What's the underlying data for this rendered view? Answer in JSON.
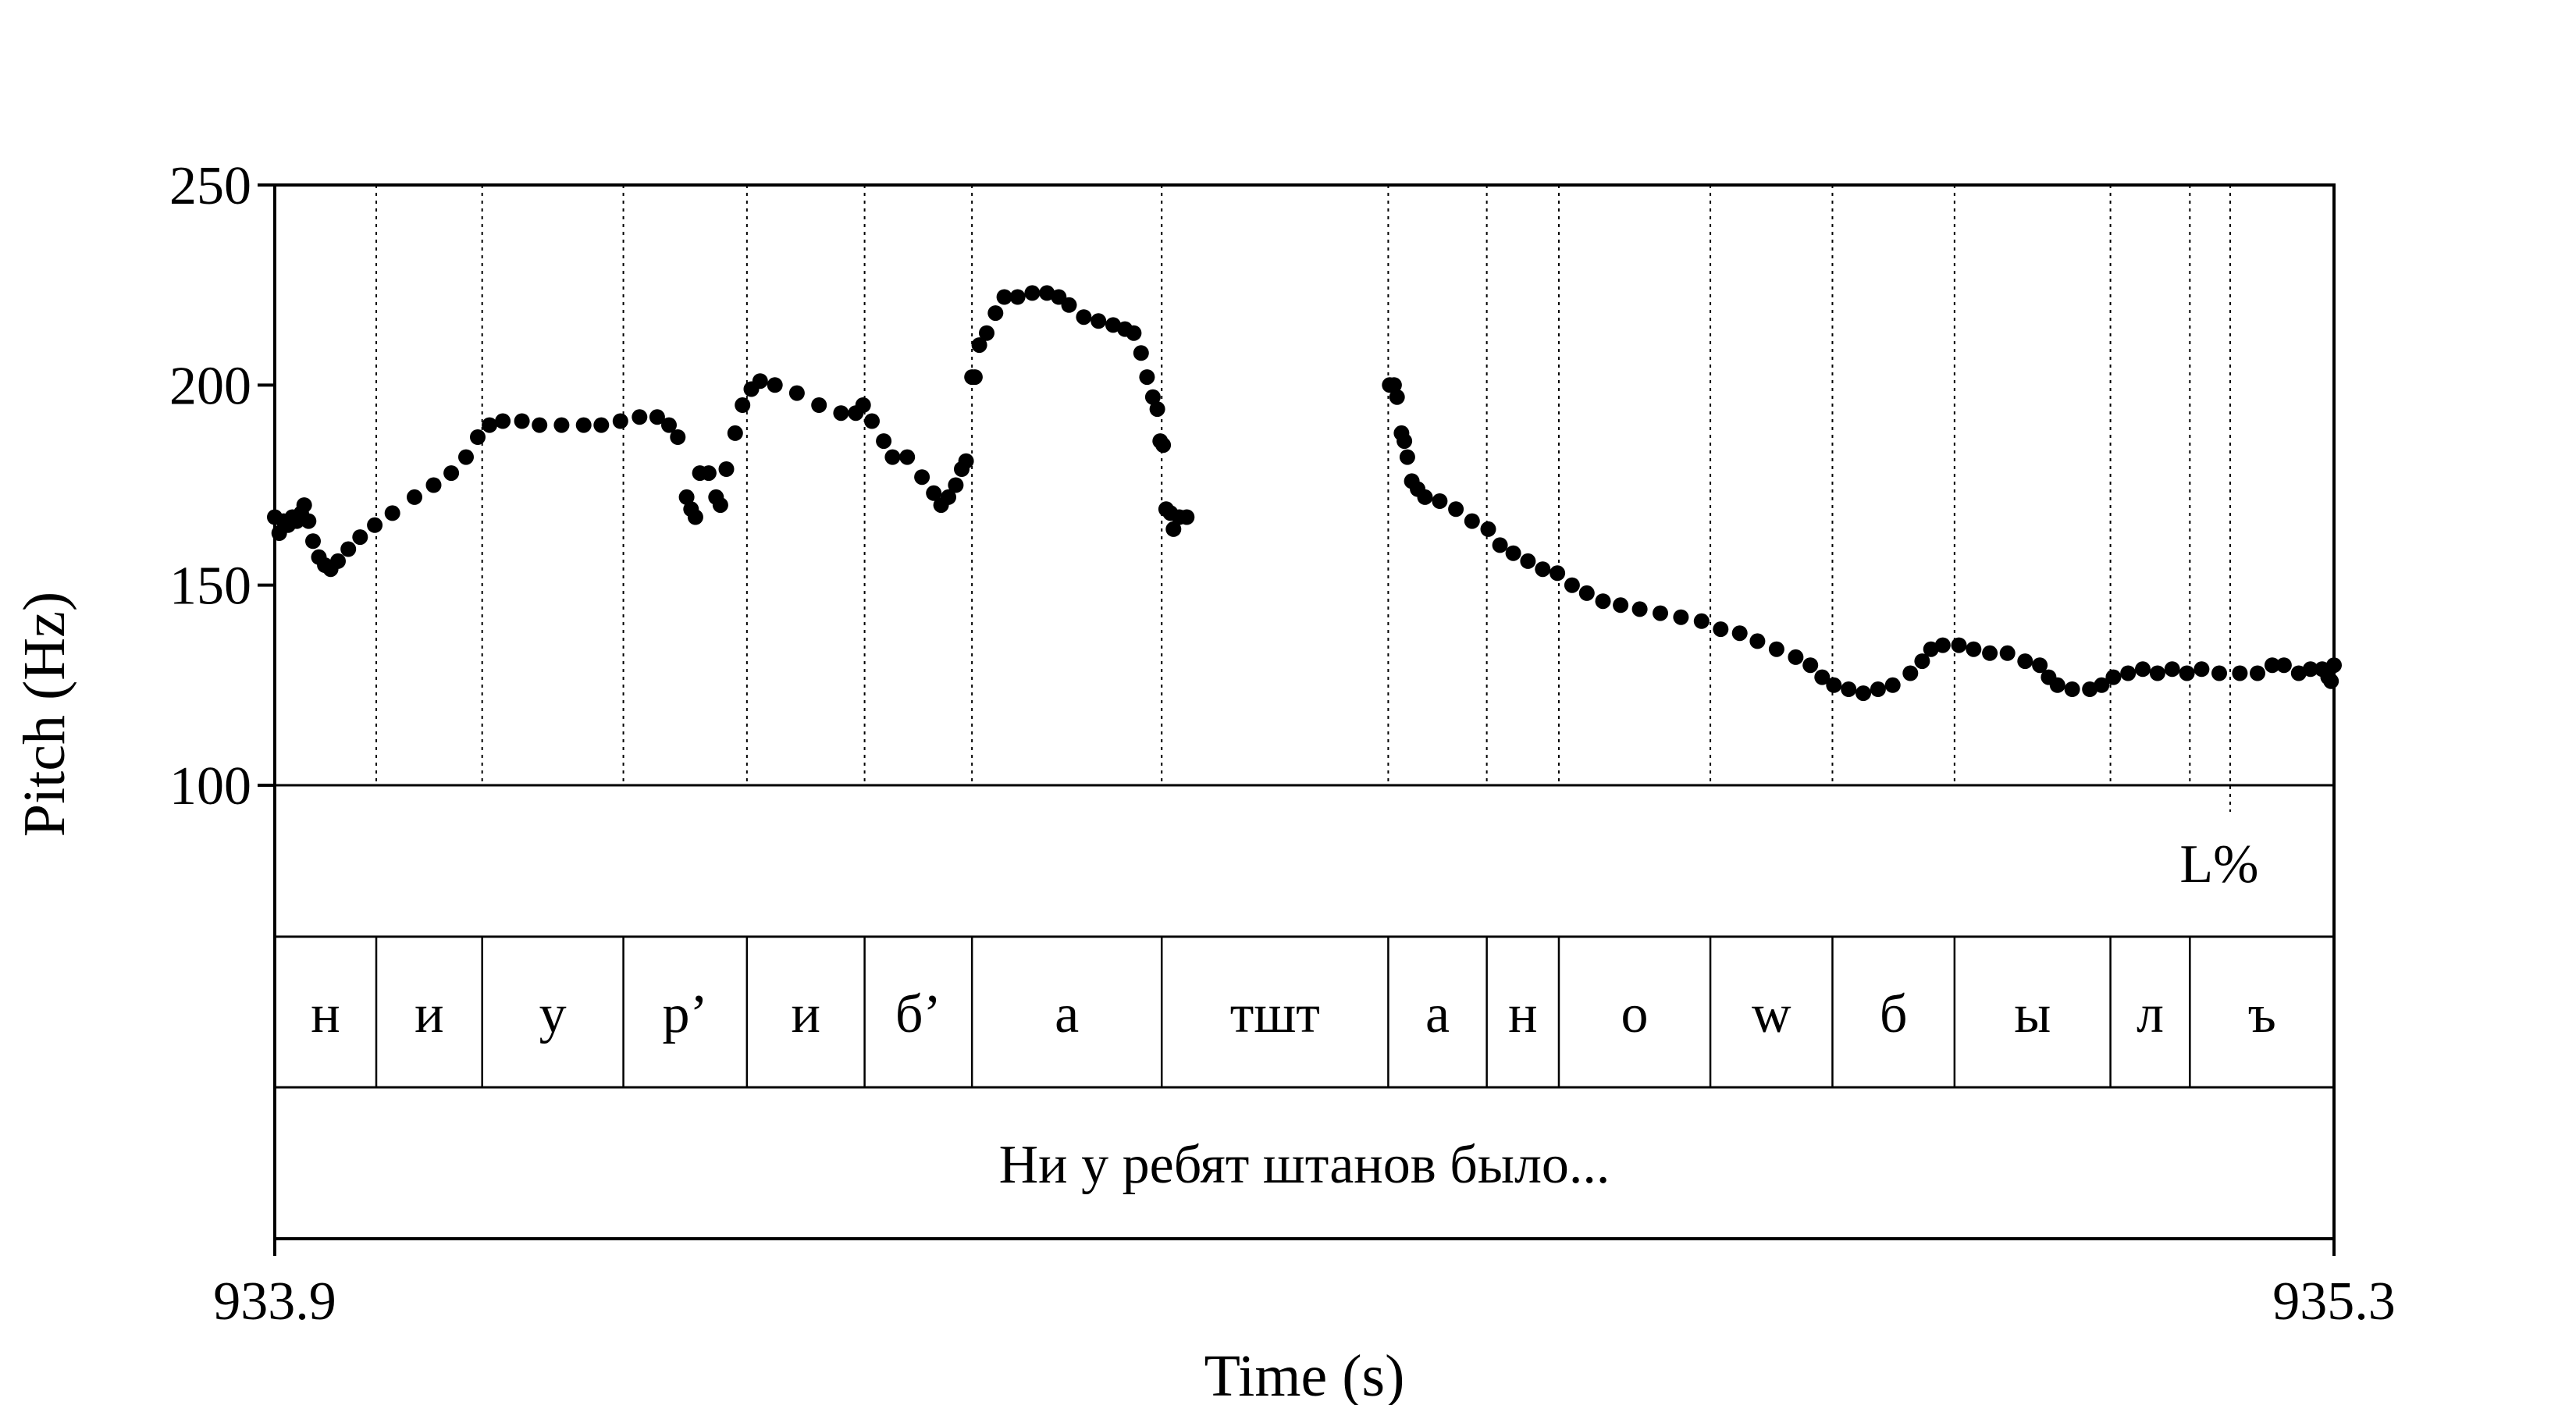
{
  "chart_data": {
    "type": "scatter",
    "ylabel": "Pitch (Hz)",
    "xlabel": "Time (s)",
    "ylim": [
      100,
      250
    ],
    "yticks": [
      100,
      150,
      200,
      250
    ],
    "xlim": [
      933.9,
      935.3
    ],
    "xtick_labels": [
      "933.9",
      "935.3"
    ],
    "grid": "dotted vertical lines at segment boundaries",
    "point_color": "#000000",
    "tiers": {
      "tone": [
        {
          "label": "L%",
          "t": 935.2294
        }
      ],
      "segments": [
        {
          "label": "н",
          "start": 933.9,
          "end": 933.969
        },
        {
          "label": "и",
          "start": 933.969,
          "end": 934.041
        },
        {
          "label": "у",
          "start": 934.041,
          "end": 934.137
        },
        {
          "label": "р’",
          "start": 934.137,
          "end": 934.221
        },
        {
          "label": "и",
          "start": 934.221,
          "end": 934.301
        },
        {
          "label": "б’",
          "start": 934.301,
          "end": 934.374
        },
        {
          "label": "а",
          "start": 934.374,
          "end": 934.503
        },
        {
          "label": "тшт",
          "start": 934.503,
          "end": 934.657
        },
        {
          "label": "а",
          "start": 934.657,
          "end": 934.724
        },
        {
          "label": "н",
          "start": 934.724,
          "end": 934.773
        },
        {
          "label": "о",
          "start": 934.773,
          "end": 934.876
        },
        {
          "label": "w",
          "start": 934.876,
          "end": 934.959
        },
        {
          "label": "б",
          "start": 934.959,
          "end": 935.042
        },
        {
          "label": "ы",
          "start": 935.042,
          "end": 935.148
        },
        {
          "label": "л",
          "start": 935.148,
          "end": 935.202
        },
        {
          "label": "ъ",
          "start": 935.202,
          "end": 935.3
        }
      ],
      "sentence": "Ни у ребят штанов было..."
    },
    "series": [
      {
        "points": [
          [
            933.9,
            167
          ],
          [
            933.903,
            163
          ],
          [
            933.906,
            166
          ],
          [
            933.909,
            165
          ],
          [
            933.912,
            167
          ],
          [
            933.915,
            166
          ],
          [
            933.918,
            168
          ],
          [
            933.92,
            170
          ],
          [
            933.923,
            166
          ],
          [
            933.926,
            161
          ],
          [
            933.93,
            157
          ],
          [
            933.934,
            155
          ],
          [
            933.938,
            154
          ],
          [
            933.943,
            156
          ],
          [
            933.95,
            159
          ],
          [
            933.958,
            162
          ],
          [
            933.968,
            165
          ],
          [
            933.98,
            168
          ],
          [
            933.995,
            172
          ],
          [
            934.008,
            175
          ],
          [
            934.02,
            178
          ],
          [
            934.03,
            182
          ],
          [
            934.038,
            187
          ],
          [
            934.046,
            190
          ],
          [
            934.055,
            191
          ],
          [
            934.068,
            191
          ],
          [
            934.08,
            190
          ],
          [
            934.095,
            190
          ],
          [
            934.11,
            190
          ],
          [
            934.122,
            190
          ],
          [
            934.135,
            191
          ],
          [
            934.148,
            192
          ],
          [
            934.16,
            192
          ],
          [
            934.168,
            190
          ],
          [
            934.174,
            187
          ],
          [
            934.18,
            172
          ],
          [
            934.183,
            169
          ],
          [
            934.186,
            167
          ],
          [
            934.189,
            178
          ],
          [
            934.195,
            178
          ],
          [
            934.2,
            172
          ],
          [
            934.203,
            170
          ],
          [
            934.207,
            179
          ],
          [
            934.213,
            188
          ],
          [
            934.218,
            195
          ],
          [
            934.224,
            199
          ],
          [
            934.23,
            201
          ],
          [
            934.24,
            200
          ],
          [
            934.255,
            198
          ],
          [
            934.27,
            195
          ],
          [
            934.285,
            193
          ],
          [
            934.295,
            193
          ],
          [
            934.3,
            195
          ],
          [
            934.306,
            191
          ],
          [
            934.314,
            186
          ],
          [
            934.32,
            182
          ],
          [
            934.33,
            182
          ],
          [
            934.34,
            177
          ],
          [
            934.348,
            173
          ],
          [
            934.353,
            170
          ],
          [
            934.358,
            172
          ],
          [
            934.363,
            175
          ],
          [
            934.367,
            179
          ],
          [
            934.37,
            181
          ],
          [
            934.374,
            202
          ],
          [
            934.376,
            202
          ],
          [
            934.379,
            210
          ],
          [
            934.384,
            213
          ],
          [
            934.39,
            218
          ],
          [
            934.396,
            222
          ],
          [
            934.405,
            222
          ],
          [
            934.415,
            223
          ],
          [
            934.425,
            223
          ],
          [
            934.433,
            222
          ],
          [
            934.44,
            220
          ],
          [
            934.45,
            217
          ],
          [
            934.46,
            216
          ],
          [
            934.47,
            215
          ],
          [
            934.478,
            214
          ],
          [
            934.484,
            213
          ],
          [
            934.489,
            208
          ],
          [
            934.493,
            202
          ],
          [
            934.497,
            197
          ],
          [
            934.5,
            194
          ],
          [
            934.502,
            186
          ],
          [
            934.504,
            185
          ],
          [
            934.506,
            169
          ],
          [
            934.509,
            168
          ],
          [
            934.511,
            164
          ],
          [
            934.515,
            167
          ],
          [
            934.52,
            167
          ],
          [
            934.658,
            200
          ],
          [
            934.661,
            200
          ],
          [
            934.663,
            197
          ],
          [
            934.666,
            188
          ],
          [
            934.668,
            186
          ],
          [
            934.67,
            182
          ],
          [
            934.673,
            176
          ],
          [
            934.677,
            174
          ],
          [
            934.682,
            172
          ],
          [
            934.692,
            171
          ],
          [
            934.703,
            169
          ],
          [
            934.714,
            166
          ],
          [
            934.725,
            164
          ],
          [
            934.733,
            160
          ],
          [
            934.742,
            158
          ],
          [
            934.752,
            156
          ],
          [
            934.762,
            154
          ],
          [
            934.772,
            153
          ],
          [
            934.782,
            150
          ],
          [
            934.792,
            148
          ],
          [
            934.803,
            146
          ],
          [
            934.815,
            145
          ],
          [
            934.828,
            144
          ],
          [
            934.842,
            143
          ],
          [
            934.856,
            142
          ],
          [
            934.87,
            141
          ],
          [
            934.883,
            139
          ],
          [
            934.896,
            138
          ],
          [
            934.908,
            136
          ],
          [
            934.921,
            134
          ],
          [
            934.934,
            132
          ],
          [
            934.944,
            130
          ],
          [
            934.952,
            127
          ],
          [
            934.96,
            125
          ],
          [
            934.97,
            124
          ],
          [
            934.98,
            123
          ],
          [
            934.99,
            124
          ],
          [
            935.0,
            125
          ],
          [
            935.012,
            128
          ],
          [
            935.02,
            131
          ],
          [
            935.026,
            134
          ],
          [
            935.034,
            135
          ],
          [
            935.045,
            135
          ],
          [
            935.055,
            134
          ],
          [
            935.066,
            133
          ],
          [
            935.078,
            133
          ],
          [
            935.09,
            131
          ],
          [
            935.1,
            130
          ],
          [
            935.106,
            127
          ],
          [
            935.112,
            125
          ],
          [
            935.122,
            124
          ],
          [
            935.134,
            124
          ],
          [
            935.142,
            125
          ],
          [
            935.15,
            127
          ],
          [
            935.16,
            128
          ],
          [
            935.17,
            129
          ],
          [
            935.18,
            128
          ],
          [
            935.19,
            129
          ],
          [
            935.2,
            128
          ],
          [
            935.21,
            129
          ],
          [
            935.222,
            128
          ],
          [
            935.236,
            128
          ],
          [
            935.248,
            128
          ],
          [
            935.258,
            130
          ],
          [
            935.266,
            130
          ],
          [
            935.276,
            128
          ],
          [
            935.284,
            129
          ],
          [
            935.292,
            129
          ],
          [
            935.296,
            127
          ],
          [
            935.298,
            126
          ],
          [
            935.3,
            130
          ]
        ]
      }
    ]
  }
}
